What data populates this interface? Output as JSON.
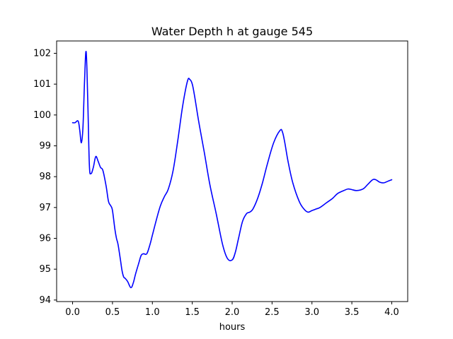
{
  "chart_data": {
    "type": "line",
    "title": "Water Depth h at gauge 545",
    "xlabel": "hours",
    "ylabel": "",
    "xlim": [
      -0.2,
      4.2
    ],
    "ylim": [
      93.95,
      102.4
    ],
    "xticks": [
      0.0,
      0.5,
      1.0,
      1.5,
      2.0,
      2.5,
      3.0,
      3.5,
      4.0
    ],
    "xtick_labels": [
      "0.0",
      "0.5",
      "1.0",
      "1.5",
      "2.0",
      "2.5",
      "3.0",
      "3.5",
      "4.0"
    ],
    "yticks": [
      94,
      95,
      96,
      97,
      98,
      99,
      100,
      101,
      102
    ],
    "ytick_labels": [
      "94",
      "95",
      "96",
      "97",
      "98",
      "99",
      "100",
      "101",
      "102"
    ],
    "grid": false,
    "legend": null,
    "colors": {
      "line": "#0000ff",
      "axes": "#000000",
      "background": "#ffffff"
    },
    "series": [
      {
        "name": "h",
        "x": [
          0.0,
          0.03,
          0.07,
          0.09,
          0.11,
          0.13,
          0.15,
          0.17,
          0.19,
          0.21,
          0.23,
          0.26,
          0.29,
          0.32,
          0.35,
          0.38,
          0.42,
          0.45,
          0.48,
          0.5,
          0.53,
          0.55,
          0.57,
          0.6,
          0.62,
          0.64,
          0.66,
          0.69,
          0.73,
          0.76,
          0.79,
          0.83,
          0.86,
          0.89,
          0.93,
          0.97,
          1.0,
          1.05,
          1.1,
          1.15,
          1.2,
          1.26,
          1.32,
          1.38,
          1.44,
          1.47,
          1.5,
          1.53,
          1.58,
          1.65,
          1.72,
          1.8,
          1.88,
          1.94,
          2.0,
          2.04,
          2.08,
          2.13,
          2.18,
          2.22,
          2.26,
          2.32,
          2.38,
          2.44,
          2.52,
          2.6,
          2.63,
          2.66,
          2.7,
          2.76,
          2.84,
          2.9,
          2.95,
          3.0,
          3.05,
          3.1,
          3.18,
          3.26,
          3.32,
          3.4,
          3.45,
          3.5,
          3.56,
          3.64,
          3.7,
          3.76,
          3.8,
          3.85,
          3.9,
          3.95,
          4.0
        ],
        "y": [
          99.75,
          99.75,
          99.8,
          99.5,
          99.1,
          99.6,
          101.1,
          102.05,
          100.5,
          98.4,
          98.1,
          98.3,
          98.65,
          98.5,
          98.3,
          98.2,
          97.7,
          97.2,
          97.05,
          96.9,
          96.3,
          96.0,
          95.8,
          95.3,
          94.95,
          94.75,
          94.7,
          94.6,
          94.4,
          94.55,
          94.85,
          95.2,
          95.45,
          95.5,
          95.5,
          95.8,
          96.1,
          96.6,
          97.05,
          97.35,
          97.6,
          98.2,
          99.2,
          100.3,
          101.1,
          101.15,
          101.0,
          100.6,
          99.8,
          98.8,
          97.75,
          96.8,
          95.8,
          95.35,
          95.3,
          95.55,
          96.0,
          96.55,
          96.8,
          96.85,
          96.95,
          97.3,
          97.8,
          98.4,
          99.1,
          99.5,
          99.45,
          99.1,
          98.5,
          97.8,
          97.2,
          96.95,
          96.85,
          96.9,
          96.95,
          97.0,
          97.15,
          97.3,
          97.45,
          97.55,
          97.6,
          97.58,
          97.55,
          97.6,
          97.75,
          97.9,
          97.9,
          97.82,
          97.8,
          97.85,
          97.9
        ]
      }
    ]
  }
}
